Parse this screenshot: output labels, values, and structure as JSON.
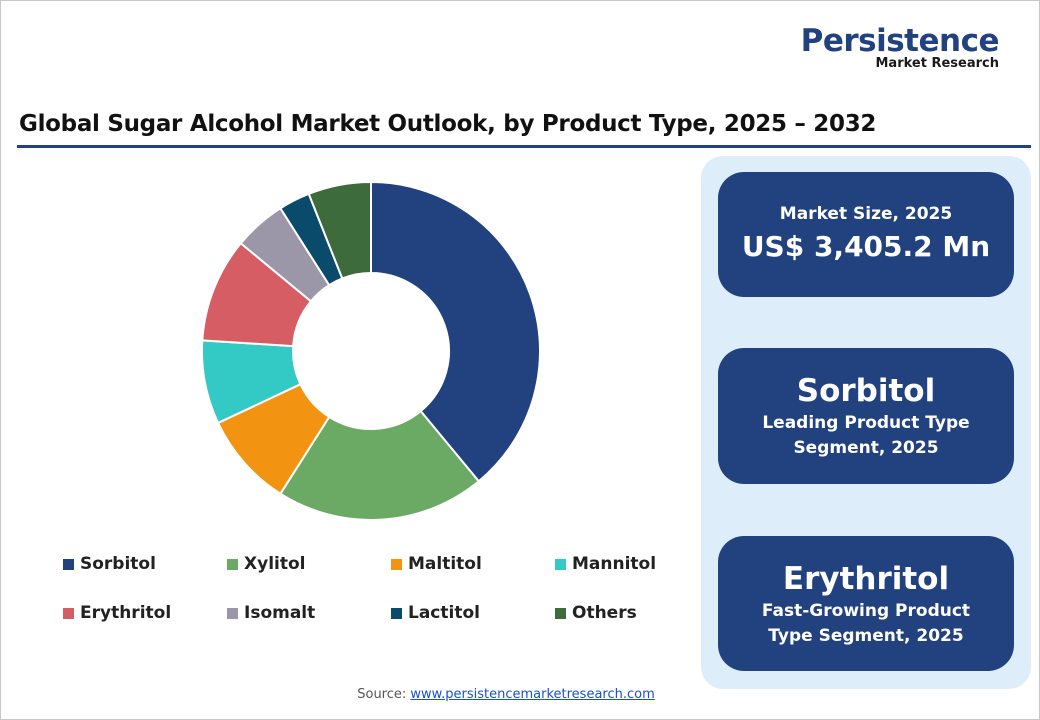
{
  "logo": {
    "name": "Persistence",
    "sub": "Market Research"
  },
  "chart_data": {
    "type": "donut",
    "title": "Global Sugar Alcohol Market Outlook, by Product Type, 2025 – 2032",
    "categories": [
      "Sorbitol",
      "Xylitol",
      "Maltitol",
      "Mannitol",
      "Erythritol",
      "Isomalt",
      "Lactitol",
      "Others"
    ],
    "values": [
      39,
      20,
      9,
      8,
      10,
      5,
      3,
      6
    ],
    "colors": [
      "#22417f",
      "#6aaa64",
      "#f39312",
      "#33c9c4",
      "#d65d63",
      "#9b97a9",
      "#0a4a6a",
      "#3d6b3c"
    ]
  },
  "cards": [
    {
      "small": "Market Size, 2025",
      "big": "US$ 3,405.2 Mn"
    },
    {
      "big": "Sorbitol",
      "small": "Leading Product Type Segment, 2025"
    },
    {
      "big": "Erythritol",
      "small": "Fast-Growing Product Type Segment, 2025"
    }
  ],
  "source": {
    "label": "Source:",
    "url": "www.persistencemarketresearch.com"
  }
}
